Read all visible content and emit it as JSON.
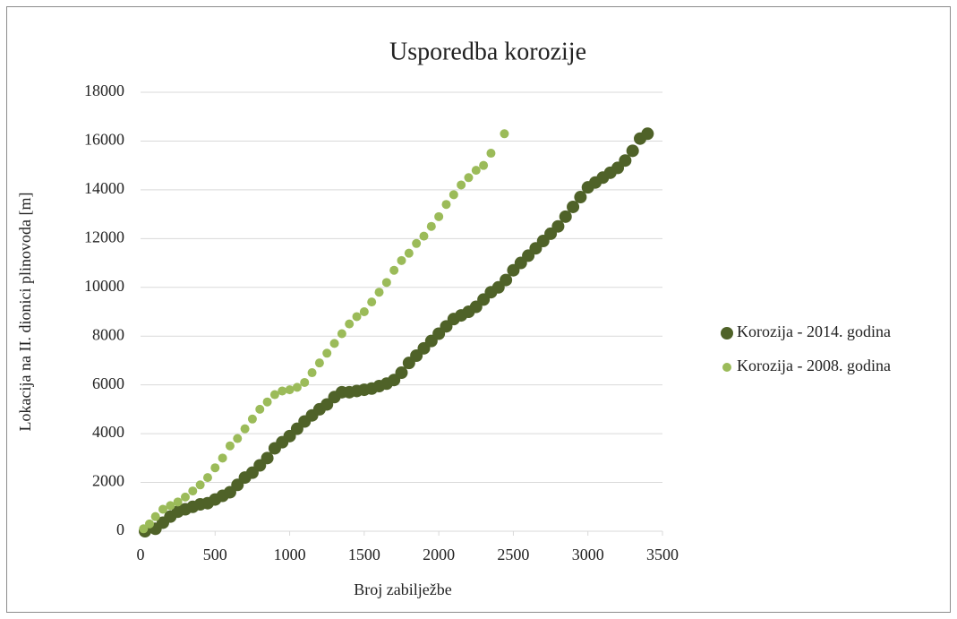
{
  "chart_data": {
    "type": "scatter",
    "title": "Usporedba korozije",
    "x_label": "Broj zabilježbe",
    "y_label": "Lokacija na II. dionici plinovoda [m]",
    "xlim": [
      0,
      3500
    ],
    "xticks": [
      0,
      500,
      1000,
      1500,
      2000,
      2500,
      3000,
      3500
    ],
    "ylim": [
      0,
      18000
    ],
    "yticks": [
      0,
      2000,
      4000,
      6000,
      8000,
      10000,
      12000,
      14000,
      16000,
      18000
    ],
    "grid": true,
    "legend": "right",
    "series": [
      {
        "name": "Korozija - 2014. godina",
        "color": "#4f6228",
        "x": [
          30,
          100,
          150,
          200,
          250,
          300,
          350,
          400,
          450,
          500,
          550,
          600,
          650,
          700,
          750,
          800,
          850,
          900,
          950,
          1000,
          1050,
          1100,
          1150,
          1200,
          1250,
          1300,
          1350,
          1400,
          1450,
          1500,
          1550,
          1600,
          1650,
          1700,
          1750,
          1800,
          1850,
          1900,
          1950,
          2000,
          2050,
          2100,
          2150,
          2200,
          2250,
          2300,
          2350,
          2400,
          2450,
          2500,
          2550,
          2600,
          2650,
          2700,
          2750,
          2800,
          2850,
          2900,
          2950,
          3000,
          3050,
          3100,
          3150,
          3200,
          3250,
          3300,
          3350,
          3400
        ],
        "y": [
          0,
          100,
          350,
          600,
          800,
          900,
          1000,
          1100,
          1150,
          1300,
          1450,
          1600,
          1900,
          2200,
          2400,
          2700,
          3000,
          3400,
          3650,
          3900,
          4200,
          4500,
          4750,
          5000,
          5200,
          5500,
          5700,
          5700,
          5750,
          5800,
          5850,
          5950,
          6050,
          6200,
          6500,
          6900,
          7200,
          7500,
          7800,
          8100,
          8400,
          8700,
          8850,
          9000,
          9200,
          9500,
          9800,
          10000,
          10300,
          10700,
          11000,
          11300,
          11600,
          11900,
          12200,
          12500,
          12900,
          13300,
          13700,
          14100,
          14300,
          14500,
          14700,
          14900,
          15200,
          15600,
          16100,
          16300
        ]
      },
      {
        "name": "Korozija - 2008. godina",
        "color": "#9bbb59",
        "x": [
          20,
          60,
          100,
          150,
          200,
          250,
          300,
          350,
          400,
          450,
          500,
          550,
          600,
          650,
          700,
          750,
          800,
          850,
          900,
          950,
          1000,
          1050,
          1100,
          1150,
          1200,
          1250,
          1300,
          1350,
          1400,
          1450,
          1500,
          1550,
          1600,
          1650,
          1700,
          1750,
          1800,
          1850,
          1900,
          1950,
          2000,
          2050,
          2100,
          2150,
          2200,
          2250,
          2300,
          2350,
          2440
        ],
        "y": [
          100,
          300,
          600,
          900,
          1050,
          1200,
          1400,
          1650,
          1900,
          2200,
          2600,
          3000,
          3500,
          3800,
          4200,
          4600,
          5000,
          5300,
          5600,
          5750,
          5800,
          5900,
          6100,
          6500,
          6900,
          7300,
          7700,
          8100,
          8500,
          8800,
          9000,
          9400,
          9800,
          10200,
          10700,
          11100,
          11400,
          11800,
          12100,
          12500,
          12900,
          13400,
          13800,
          14200,
          14500,
          14800,
          15000,
          15500,
          16300
        ]
      }
    ]
  }
}
